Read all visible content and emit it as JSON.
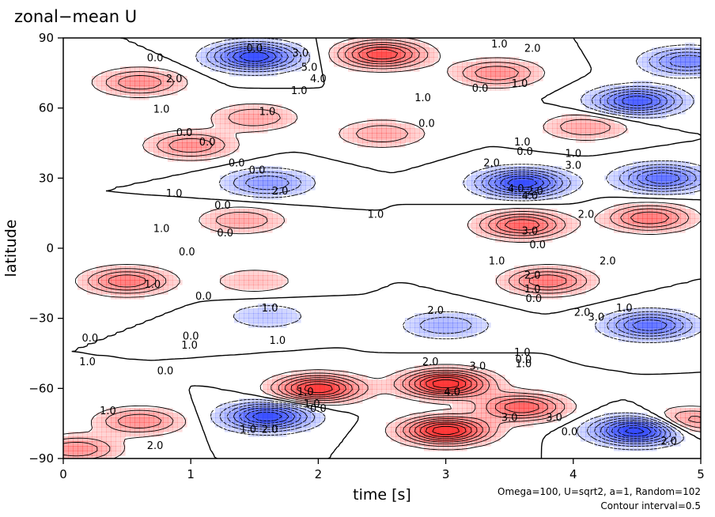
{
  "chart_data": {
    "type": "heatmap",
    "title": "zonal−mean U",
    "xlabel": "time [s]",
    "ylabel": "latitude",
    "xlim": [
      0,
      5
    ],
    "ylim": [
      -90,
      90
    ],
    "x_ticks": [
      "0",
      "1",
      "2",
      "3",
      "4",
      "5"
    ],
    "y_ticks": [
      "−90",
      "−60",
      "−30",
      "0",
      "30",
      "60",
      "90"
    ],
    "params_note": "Omega=100, U=sqrt2, a=1, Random=102",
    "contour_note": "Contour interval=0.5",
    "colors": {
      "positive": "#ff3030",
      "negative": "#2e45ff",
      "zero": "#ffffff"
    },
    "features": [
      {
        "t": 0.6,
        "lat": 71,
        "value": 2.0
      },
      {
        "t": 1.5,
        "lat": 82,
        "value": -4.0
      },
      {
        "t": 2.5,
        "lat": 83,
        "value": 3.5
      },
      {
        "t": 3.4,
        "lat": 75,
        "value": 2.0
      },
      {
        "t": 4.5,
        "lat": 63,
        "value": -3.5
      },
      {
        "t": 4.9,
        "lat": 80,
        "value": -2.5
      },
      {
        "t": 1.0,
        "lat": 44,
        "value": 2.0
      },
      {
        "t": 1.5,
        "lat": 56,
        "value": 1.5
      },
      {
        "t": 2.5,
        "lat": 49,
        "value": 1.5
      },
      {
        "t": 4.1,
        "lat": 52,
        "value": 1.5
      },
      {
        "t": 3.6,
        "lat": 28,
        "value": -4.0
      },
      {
        "t": 1.6,
        "lat": 28,
        "value": -2.0
      },
      {
        "t": 4.7,
        "lat": 30,
        "value": -3.0
      },
      {
        "t": 3.6,
        "lat": 10,
        "value": 3.0
      },
      {
        "t": 4.6,
        "lat": 13,
        "value": 2.5
      },
      {
        "t": 1.4,
        "lat": 12,
        "value": 1.5
      },
      {
        "t": 0.5,
        "lat": -14,
        "value": 2.5
      },
      {
        "t": 3.8,
        "lat": -14,
        "value": 2.5
      },
      {
        "t": 1.5,
        "lat": -14,
        "value": 1.0
      },
      {
        "t": 3.0,
        "lat": -33,
        "value": -1.5
      },
      {
        "t": 4.6,
        "lat": -33,
        "value": -3.0
      },
      {
        "t": 1.6,
        "lat": -29,
        "value": -1.0
      },
      {
        "t": 2.0,
        "lat": -60,
        "value": 4.0
      },
      {
        "t": 3.0,
        "lat": -58,
        "value": 4.5
      },
      {
        "t": 3.6,
        "lat": -68,
        "value": 3.0
      },
      {
        "t": 3.0,
        "lat": -78,
        "value": 4.5
      },
      {
        "t": 1.6,
        "lat": -72,
        "value": -4.0
      },
      {
        "t": 0.6,
        "lat": -74,
        "value": 2.0
      },
      {
        "t": 4.5,
        "lat": -78,
        "value": -4.5
      },
      {
        "t": 4.9,
        "lat": -74,
        "value": 2.0
      },
      {
        "t": 0.1,
        "lat": -86,
        "value": 2.0
      }
    ],
    "contour_labels": [
      {
        "text": "0.0",
        "t": 1.5,
        "lat": 84
      },
      {
        "text": "3.0",
        "t": 1.86,
        "lat": 82
      },
      {
        "text": "5.0",
        "t": 1.93,
        "lat": 76
      },
      {
        "text": "4.0",
        "t": 2.0,
        "lat": 71
      },
      {
        "text": "0.0",
        "t": 0.72,
        "lat": 80
      },
      {
        "text": "2.0",
        "t": 0.87,
        "lat": 71
      },
      {
        "text": "1.0",
        "t": 1.85,
        "lat": 66
      },
      {
        "text": "1.0",
        "t": 0.77,
        "lat": 58
      },
      {
        "text": "1.0",
        "t": 3.42,
        "lat": 86
      },
      {
        "text": "2.0",
        "t": 3.68,
        "lat": 84
      },
      {
        "text": "0.0",
        "t": 3.27,
        "lat": 67
      },
      {
        "text": "1.0",
        "t": 3.58,
        "lat": 69
      },
      {
        "text": "1.0",
        "t": 2.82,
        "lat": 63
      },
      {
        "text": "0.0",
        "t": 2.85,
        "lat": 52
      },
      {
        "text": "1.0",
        "t": 1.6,
        "lat": 57
      },
      {
        "text": "0.0",
        "t": 0.95,
        "lat": 48
      },
      {
        "text": "0.0",
        "t": 1.13,
        "lat": 44
      },
      {
        "text": "0.0",
        "t": 1.36,
        "lat": 35
      },
      {
        "text": "0.0",
        "t": 1.52,
        "lat": 32
      },
      {
        "text": "2.0",
        "t": 1.7,
        "lat": 23
      },
      {
        "text": "1.0",
        "t": 0.87,
        "lat": 22
      },
      {
        "text": "0.0",
        "t": 1.25,
        "lat": 17
      },
      {
        "text": "1.0",
        "t": 0.77,
        "lat": 7
      },
      {
        "text": "0.0",
        "t": 1.27,
        "lat": 5
      },
      {
        "text": "0.0",
        "t": 0.97,
        "lat": -3
      },
      {
        "text": "2.0",
        "t": 3.36,
        "lat": 35
      },
      {
        "text": "4.0",
        "t": 3.55,
        "lat": 24
      },
      {
        "text": "2.0",
        "t": 3.7,
        "lat": 23
      },
      {
        "text": "4.0",
        "t": 3.66,
        "lat": 21
      },
      {
        "text": "1.0",
        "t": 3.6,
        "lat": 44
      },
      {
        "text": "0.0",
        "t": 3.62,
        "lat": 40
      },
      {
        "text": "1.0",
        "t": 4.0,
        "lat": 39
      },
      {
        "text": "3.0",
        "t": 4.0,
        "lat": 34
      },
      {
        "text": "1.0",
        "t": 2.45,
        "lat": 13
      },
      {
        "text": "2.0",
        "t": 4.1,
        "lat": 13
      },
      {
        "text": "3.0",
        "t": 3.66,
        "lat": 6
      },
      {
        "text": "0.0",
        "t": 3.72,
        "lat": 0
      },
      {
        "text": "1.0",
        "t": 3.4,
        "lat": -7
      },
      {
        "text": "2.0",
        "t": 4.27,
        "lat": -7
      },
      {
        "text": "2.0",
        "t": 3.68,
        "lat": -13
      },
      {
        "text": "1.0",
        "t": 3.68,
        "lat": -19
      },
      {
        "text": "0.0",
        "t": 3.69,
        "lat": -23
      },
      {
        "text": "1.0",
        "t": 0.7,
        "lat": -17
      },
      {
        "text": "0.0",
        "t": 1.1,
        "lat": -22
      },
      {
        "text": "1.0",
        "t": 1.62,
        "lat": -27
      },
      {
        "text": "2.0",
        "t": 2.92,
        "lat": -28
      },
      {
        "text": "2.0",
        "t": 4.07,
        "lat": -29
      },
      {
        "text": "3.0",
        "t": 4.18,
        "lat": -31
      },
      {
        "text": "1.0",
        "t": 4.4,
        "lat": -27
      },
      {
        "text": "0.0",
        "t": 0.21,
        "lat": -40
      },
      {
        "text": "0.0",
        "t": 1.0,
        "lat": -39
      },
      {
        "text": "1.0",
        "t": 0.99,
        "lat": -43
      },
      {
        "text": "1.0",
        "t": 1.68,
        "lat": -41
      },
      {
        "text": "1.0",
        "t": 0.19,
        "lat": -50
      },
      {
        "text": "0.0",
        "t": 0.8,
        "lat": -54
      },
      {
        "text": "1.0",
        "t": 3.6,
        "lat": -46
      },
      {
        "text": "0.0",
        "t": 3.61,
        "lat": -49
      },
      {
        "text": "1.0",
        "t": 3.61,
        "lat": -51
      },
      {
        "text": "2.0",
        "t": 2.88,
        "lat": -50
      },
      {
        "text": "3.0",
        "t": 3.25,
        "lat": -52
      },
      {
        "text": "4.0",
        "t": 3.05,
        "lat": -63
      },
      {
        "text": "1.0",
        "t": 1.9,
        "lat": -63
      },
      {
        "text": "1.0",
        "t": 1.95,
        "lat": -68
      },
      {
        "text": "0.0",
        "t": 2.0,
        "lat": -70
      },
      {
        "text": "3.0",
        "t": 3.5,
        "lat": -74
      },
      {
        "text": "3.0",
        "t": 3.85,
        "lat": -74
      },
      {
        "text": "1.0",
        "t": 0.35,
        "lat": -71
      },
      {
        "text": "1.0",
        "t": 1.45,
        "lat": -79
      },
      {
        "text": "2.0",
        "t": 1.62,
        "lat": -79
      },
      {
        "text": "2.0",
        "t": 0.72,
        "lat": -86
      },
      {
        "text": "0.0",
        "t": 3.97,
        "lat": -80
      },
      {
        "text": "2.0",
        "t": 4.75,
        "lat": -84
      }
    ]
  }
}
